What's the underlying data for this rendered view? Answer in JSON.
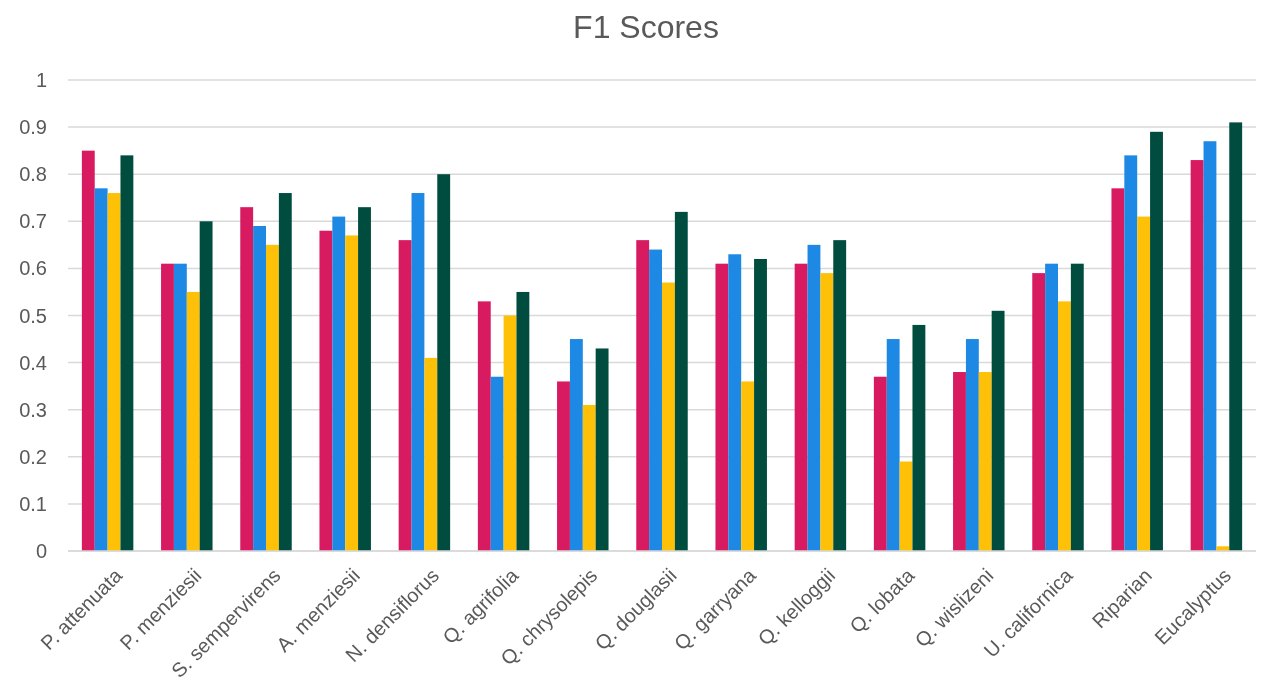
{
  "chart_data": {
    "type": "bar",
    "title": "F1 Scores",
    "categories": [
      "P. attenuata",
      "P. menziesii",
      "S. sempervirens",
      "A. menziesii",
      "N. densiflorus",
      "Q. agrifolia",
      "Q. chrysolepis",
      "Q. douglasii",
      "Q. garryana",
      "Q. kelloggii",
      "Q. lobata",
      "Q. wislizeni",
      "U. californica",
      "Riparian",
      "Eucalyptus"
    ],
    "series": [
      {
        "color": "#d81b60",
        "values": [
          0.85,
          0.61,
          0.73,
          0.68,
          0.66,
          0.53,
          0.36,
          0.66,
          0.61,
          0.61,
          0.37,
          0.38,
          0.59,
          0.77,
          0.83
        ]
      },
      {
        "color": "#1e88e5",
        "values": [
          0.77,
          0.61,
          0.69,
          0.71,
          0.76,
          0.37,
          0.45,
          0.64,
          0.63,
          0.65,
          0.45,
          0.45,
          0.61,
          0.84,
          0.87
        ]
      },
      {
        "color": "#ffc107",
        "values": [
          0.76,
          0.55,
          0.65,
          0.67,
          0.41,
          0.5,
          0.31,
          0.57,
          0.36,
          0.59,
          0.19,
          0.38,
          0.53,
          0.71,
          0.01
        ]
      },
      {
        "color": "#004d40",
        "values": [
          0.84,
          0.7,
          0.76,
          0.73,
          0.8,
          0.55,
          0.43,
          0.72,
          0.62,
          0.66,
          0.48,
          0.51,
          0.61,
          0.89,
          0.91
        ]
      }
    ],
    "ylim": [
      0,
      1
    ],
    "yticks": [
      0,
      {
        "value": 0.1,
        "label": "0.1"
      },
      {
        "value": 0.2,
        "label": "0.2"
      },
      {
        "value": 0.3,
        "label": "0.3"
      },
      {
        "value": 0.4,
        "label": "0.4"
      },
      {
        "value": 0.5,
        "label": "0.5"
      },
      {
        "value": 0.6,
        "label": "0.6"
      },
      {
        "value": 0.7,
        "label": "0.7"
      },
      {
        "value": 0.8,
        "label": "0.8"
      },
      {
        "value": 0.9,
        "label": "0.9"
      },
      1
    ],
    "grid": "y"
  }
}
